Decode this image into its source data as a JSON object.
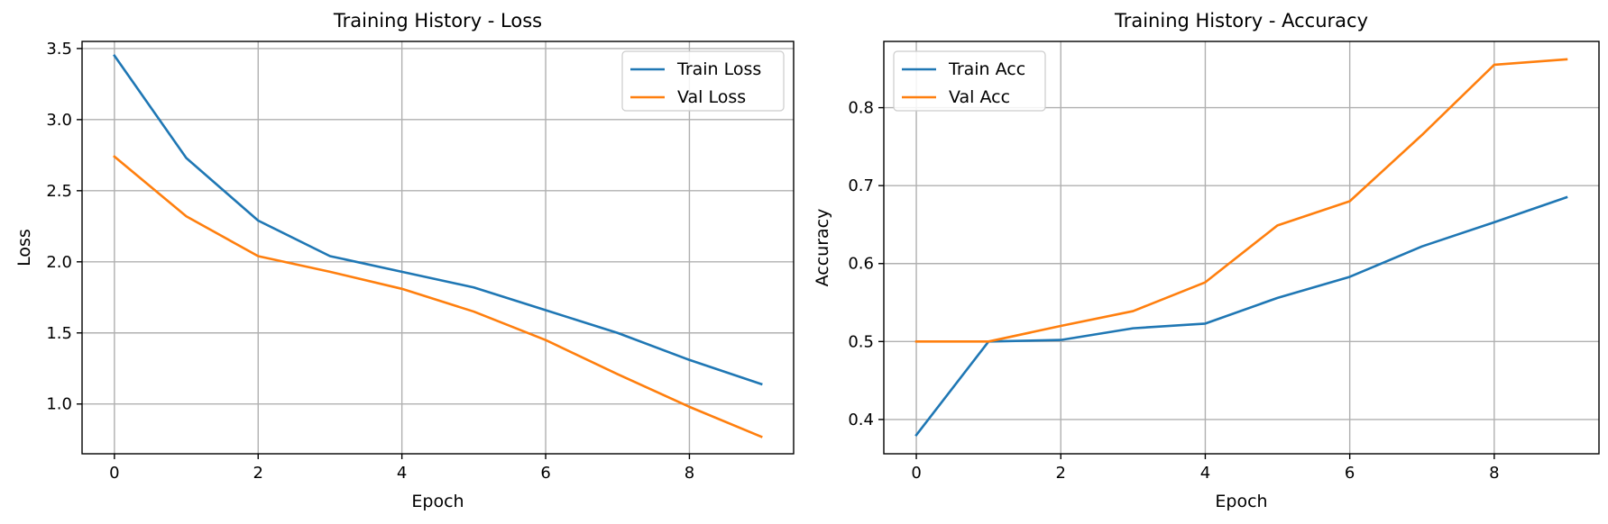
{
  "chart_data": [
    {
      "type": "line",
      "title": "Training History - Loss",
      "xlabel": "Epoch",
      "ylabel": "Loss",
      "x": [
        0,
        1,
        2,
        3,
        4,
        5,
        6,
        7,
        8,
        9
      ],
      "xlim": [
        -0.45,
        9.45
      ],
      "ylim": [
        0.65,
        3.55
      ],
      "xticks": [
        0,
        2,
        4,
        6,
        8
      ],
      "yticks": [
        1.0,
        1.5,
        2.0,
        2.5,
        3.0,
        3.5
      ],
      "ytick_labels": [
        "1.0",
        "1.5",
        "2.0",
        "2.5",
        "3.0",
        "3.5"
      ],
      "grid": true,
      "legend_position": "top-right",
      "series": [
        {
          "name": "Train Loss",
          "color": "#1f77b4",
          "values": [
            3.45,
            2.73,
            2.29,
            2.04,
            1.93,
            1.82,
            1.66,
            1.5,
            1.31,
            1.14
          ]
        },
        {
          "name": "Val Loss",
          "color": "#ff7f0e",
          "values": [
            2.74,
            2.32,
            2.04,
            1.93,
            1.81,
            1.65,
            1.45,
            1.21,
            0.98,
            0.77
          ]
        }
      ]
    },
    {
      "type": "line",
      "title": "Training History - Accuracy",
      "xlabel": "Epoch",
      "ylabel": "Accuracy",
      "x": [
        0,
        1,
        2,
        3,
        4,
        5,
        6,
        7,
        8,
        9
      ],
      "xlim": [
        -0.45,
        9.45
      ],
      "ylim": [
        0.356,
        0.885
      ],
      "xticks": [
        0,
        2,
        4,
        6,
        8
      ],
      "yticks": [
        0.4,
        0.5,
        0.6,
        0.7,
        0.8
      ],
      "ytick_labels": [
        "0.4",
        "0.5",
        "0.6",
        "0.7",
        "0.8"
      ],
      "grid": true,
      "legend_position": "top-left",
      "series": [
        {
          "name": "Train Acc",
          "color": "#1f77b4",
          "values": [
            0.38,
            0.5,
            0.502,
            0.517,
            0.523,
            0.556,
            0.583,
            0.622,
            0.653,
            0.685
          ]
        },
        {
          "name": "Val Acc",
          "color": "#ff7f0e",
          "values": [
            0.5,
            0.5,
            0.52,
            0.539,
            0.576,
            0.649,
            0.68,
            0.765,
            0.855,
            0.862
          ]
        }
      ]
    }
  ]
}
